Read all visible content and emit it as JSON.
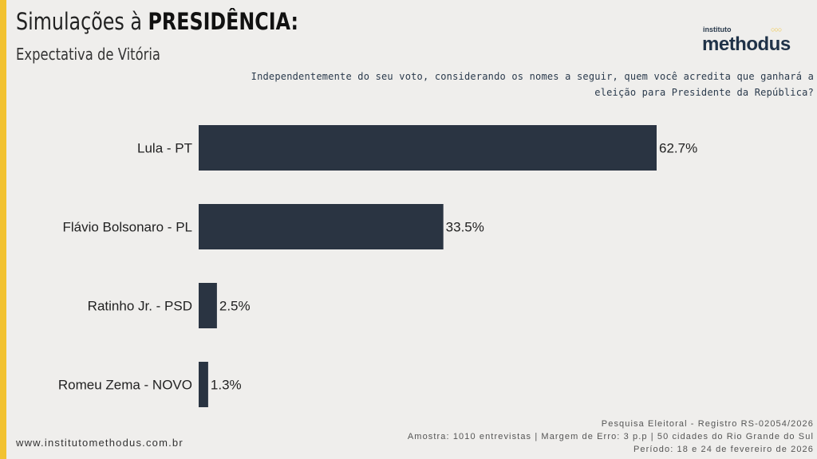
{
  "header": {
    "title_prefix": "Simulações à ",
    "title_bold": "PRESIDÊNCIA:",
    "subtitle": "Expectativa de Vitória"
  },
  "logo": {
    "small": "instituto",
    "big": "methodus"
  },
  "question": "Independentemente do seu voto, considerando os nomes a seguir, quem você acredita que ganhará a eleição para Presidente da República?",
  "chart_data": {
    "type": "bar",
    "orientation": "horizontal",
    "categories": [
      "Lula - PT",
      "Flávio Bolsonaro - PL",
      "Ratinho Jr. - PSD",
      "Romeu Zema - NOVO"
    ],
    "values": [
      62.7,
      33.5,
      2.5,
      1.3
    ],
    "labels": [
      "62.7%",
      "33.5%",
      "2.5%",
      "1.3%"
    ],
    "unit": "%",
    "bar_color": "#2a3442",
    "xlim": [
      0,
      70
    ],
    "grid": false
  },
  "footer": {
    "url": "www.institutomethodus.com.br",
    "registro": "Pesquisa Eleitoral - Registro RS-02054/2026",
    "amostra": "Amostra: 1010 entrevistas | Margem de Erro: 3 p.p | 50 cidades do Rio Grande do Sul",
    "periodo": "Período: 18 e 24 de fevereiro de 2026"
  }
}
